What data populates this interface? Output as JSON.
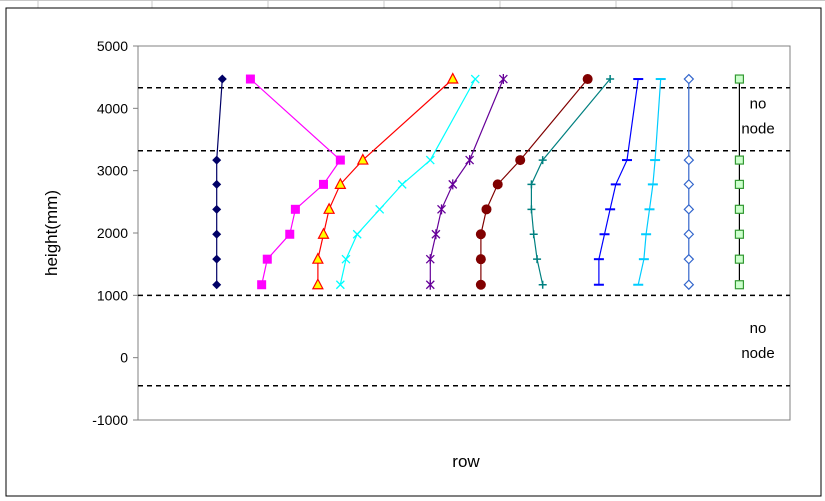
{
  "chart_data": {
    "type": "line",
    "title": "",
    "xlabel": "row",
    "ylabel": "height(mm)",
    "ylim": [
      -1000,
      5000
    ],
    "yticks": [
      -1000,
      0,
      1000,
      2000,
      3000,
      4000,
      5000
    ],
    "ytick_labels": [
      "-1000",
      "0",
      "1000",
      "2000",
      "3000",
      "4000",
      "5000"
    ],
    "grid": false,
    "legend": "none",
    "reference_lines": [
      {
        "y": 4330,
        "style": "dashed",
        "color": "#000000"
      },
      {
        "y": 3320,
        "style": "dashed",
        "color": "#000000"
      },
      {
        "y": 1000,
        "style": "dashed",
        "color": "#000000"
      },
      {
        "y": -450,
        "style": "dashed",
        "color": "#000000"
      }
    ],
    "annotations": [
      {
        "lines": [
          "no",
          "node"
        ],
        "y": 3900,
        "x_position": "right"
      },
      {
        "lines": [
          "no",
          "node"
        ],
        "y": 300,
        "x_position": "right"
      }
    ],
    "series": [
      {
        "color": "#000066",
        "marker": "diamond",
        "x": [
          1.35,
          1.3,
          1.3,
          1.3,
          1.3,
          1.3,
          1.3
        ],
        "y": [
          4470,
          3170,
          2780,
          2380,
          1980,
          1580,
          1170
        ]
      },
      {
        "color": "#FF00FF",
        "marker": "square",
        "x": [
          1.6,
          2.4,
          2.25,
          2.0,
          1.95,
          1.75,
          1.7
        ],
        "y": [
          4470,
          3170,
          2780,
          2380,
          1980,
          1580,
          1170
        ]
      },
      {
        "color": "#FF0000",
        "marker": "triangle",
        "marker_fill": "#FFFF00",
        "x": [
          3.4,
          2.6,
          2.4,
          2.3,
          2.25,
          2.2,
          2.2
        ],
        "y": [
          4470,
          3170,
          2780,
          2380,
          1980,
          1580,
          1170
        ]
      },
      {
        "color": "#00FFFF",
        "marker": "x",
        "x": [
          3.6,
          3.2,
          2.95,
          2.75,
          2.55,
          2.45,
          2.4
        ],
        "y": [
          4470,
          3170,
          2780,
          2380,
          1980,
          1580,
          1170
        ]
      },
      {
        "color": "#660099",
        "marker": "star",
        "x": [
          3.85,
          3.55,
          3.4,
          3.3,
          3.25,
          3.2,
          3.2
        ],
        "y": [
          4470,
          3170,
          2780,
          2380,
          1980,
          1580,
          1170
        ]
      },
      {
        "color": "#800000",
        "marker": "circle",
        "x": [
          4.6,
          4.0,
          3.8,
          3.7,
          3.65,
          3.65,
          3.65
        ],
        "y": [
          4470,
          3170,
          2780,
          2380,
          1980,
          1580,
          1170
        ]
      },
      {
        "color": "#008080",
        "marker": "plus",
        "x": [
          4.8,
          4.2,
          4.1,
          4.1,
          4.12,
          4.15,
          4.2
        ],
        "y": [
          4470,
          3170,
          2780,
          2380,
          1980,
          1580,
          1170
        ]
      },
      {
        "color": "#0000FF",
        "marker": "dash",
        "x": [
          5.05,
          4.95,
          4.85,
          4.8,
          4.75,
          4.7,
          4.7
        ],
        "y": [
          4470,
          3170,
          2780,
          2380,
          1980,
          1580,
          1170
        ]
      },
      {
        "color": "#00CCFF",
        "marker": "dash",
        "x": [
          5.25,
          5.2,
          5.18,
          5.15,
          5.12,
          5.1,
          5.05
        ],
        "y": [
          4470,
          3170,
          2780,
          2380,
          1980,
          1580,
          1170
        ]
      },
      {
        "color": "#3366CC",
        "marker": "diamond-open",
        "x": [
          5.5,
          5.5,
          5.5,
          5.5,
          5.5,
          5.5,
          5.5
        ],
        "y": [
          4470,
          3170,
          2780,
          2380,
          1980,
          1580,
          1170
        ]
      },
      {
        "color": "#339933",
        "marker": "square-open",
        "line_color": "#000000",
        "x": [
          5.95,
          5.95,
          5.95,
          5.95,
          5.95,
          5.95,
          5.95
        ],
        "y": [
          4470,
          3170,
          2780,
          2380,
          1980,
          1580,
          1170
        ]
      }
    ]
  }
}
